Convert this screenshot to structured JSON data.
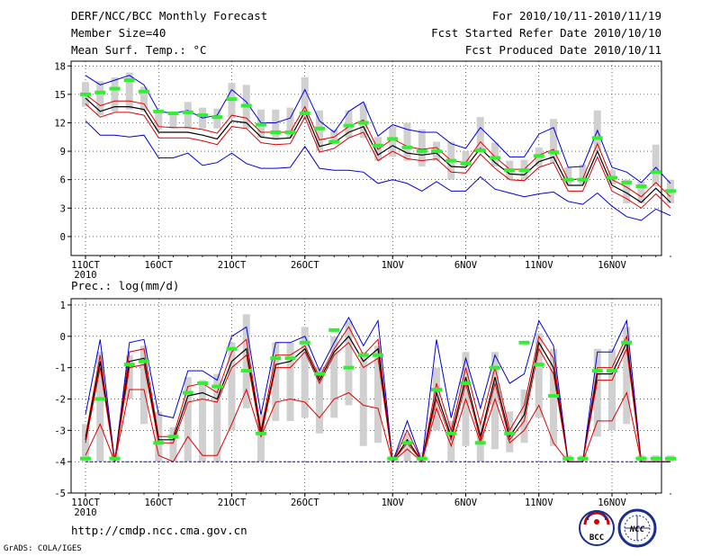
{
  "header": {
    "title": "DERF/NCC/BCC Monthly Forecast",
    "member": "Member Size=40",
    "variable": "Mean Surf. Temp.: °C",
    "period": "For 2010/10/11-2010/11/19",
    "started": "Fcst Started Refer Date 2010/10/10",
    "produced": "Fcst Produced Date 2010/10/11"
  },
  "footer": {
    "url": "http://cmdp.ncc.cma.gov.cn",
    "credit": "GrADS: COLA/IGES",
    "logo1_text": "BCC",
    "logo2_text": "NCC"
  },
  "colors": {
    "envelope": "#0000dd",
    "spread": "#dd0000",
    "mean": "#000000",
    "observed": "#33ee33",
    "box": "#d0d0d0"
  },
  "chart_data": [
    {
      "type": "line",
      "title": "Mean Surf. Temp.: °C",
      "x_labels": [
        "11OCT",
        "16OCT",
        "21OCT",
        "26OCT",
        "1NOV",
        "6NOV",
        "11NOV",
        "16NOV"
      ],
      "x_label_days": [
        0,
        5,
        10,
        15,
        21,
        26,
        31,
        36
      ],
      "year_label": "2010",
      "ylim": [
        -2,
        18.5
      ],
      "yticks": [
        0,
        3,
        6,
        9,
        12,
        15,
        18
      ],
      "series": [
        {
          "name": "max",
          "values": [
            17.0,
            16.0,
            16.5,
            17.0,
            16.0,
            13.2,
            13.0,
            13.3,
            12.5,
            12.8,
            15.5,
            14.2,
            12.0,
            12.0,
            12.5,
            15.5,
            12.2,
            11.0,
            13.2,
            14.2,
            10.6,
            11.8,
            11.3,
            11.0,
            11.0,
            9.8,
            9.3,
            11.5,
            10.0,
            8.4,
            8.4,
            10.8,
            11.5,
            7.3,
            7.4,
            11.2,
            7.3,
            6.8,
            5.7,
            7.3,
            5.6
          ]
        },
        {
          "name": "upper",
          "values": [
            15.0,
            13.8,
            14.3,
            14.3,
            14.0,
            11.6,
            11.5,
            11.5,
            11.3,
            10.9,
            12.8,
            12.5,
            11.0,
            11.0,
            11.0,
            13.7,
            10.2,
            10.5,
            11.6,
            12.3,
            9.2,
            10.3,
            9.5,
            9.2,
            9.4,
            8.0,
            7.8,
            10.0,
            8.4,
            7.1,
            7.1,
            8.6,
            9.2,
            6.0,
            6.1,
            9.8,
            6.0,
            5.2,
            4.2,
            5.7,
            4.2
          ]
        },
        {
          "name": "mean",
          "values": [
            14.6,
            13.2,
            13.7,
            13.7,
            13.4,
            11.0,
            11.0,
            11.0,
            10.7,
            10.3,
            12.2,
            12.0,
            10.5,
            10.3,
            10.4,
            13.2,
            9.5,
            9.9,
            11.0,
            11.6,
            8.6,
            9.6,
            8.8,
            8.6,
            8.8,
            7.4,
            7.3,
            9.3,
            7.8,
            6.6,
            6.5,
            7.9,
            8.4,
            5.4,
            5.4,
            9.0,
            5.4,
            4.6,
            3.6,
            5.1,
            3.6
          ]
        },
        {
          "name": "lower",
          "values": [
            14.0,
            12.6,
            13.1,
            13.1,
            12.8,
            10.4,
            10.4,
            10.4,
            10.1,
            9.7,
            11.6,
            11.4,
            9.9,
            9.7,
            9.8,
            12.6,
            8.9,
            9.3,
            10.4,
            11.0,
            8.0,
            9.0,
            8.2,
            8.0,
            8.2,
            6.8,
            6.7,
            8.7,
            7.2,
            6.0,
            5.9,
            7.3,
            7.8,
            4.8,
            4.8,
            8.4,
            4.8,
            4.0,
            3.0,
            4.5,
            3.0
          ]
        },
        {
          "name": "min",
          "values": [
            12.2,
            10.7,
            10.7,
            10.5,
            10.7,
            8.3,
            8.3,
            8.8,
            7.5,
            7.8,
            8.8,
            7.7,
            7.2,
            7.2,
            7.3,
            9.5,
            7.2,
            7.0,
            7.0,
            6.8,
            5.6,
            6.0,
            5.6,
            4.8,
            5.8,
            4.8,
            4.8,
            6.3,
            5.0,
            4.6,
            4.2,
            4.5,
            4.7,
            3.7,
            3.4,
            4.6,
            3.2,
            2.1,
            1.7,
            2.9,
            2.2
          ]
        }
      ],
      "boxes": [
        [
          13.7,
          16.3
        ],
        [
          12.8,
          16.4
        ],
        [
          13.2,
          16.8
        ],
        [
          13.4,
          17.3
        ],
        [
          13.2,
          15.8
        ],
        [
          11.3,
          13.3
        ],
        [
          11.4,
          12.9
        ],
        [
          11.4,
          14.2
        ],
        [
          11.4,
          13.6
        ],
        [
          11.4,
          13.5
        ],
        [
          12.5,
          16.2
        ],
        [
          11.4,
          16.0
        ],
        [
          10.4,
          13.4
        ],
        [
          10.4,
          13.4
        ],
        [
          10.4,
          13.6
        ],
        [
          12.4,
          16.8
        ],
        [
          9.0,
          13.3
        ],
        [
          9.7,
          11.3
        ],
        [
          10.4,
          13.3
        ],
        [
          10.4,
          14.0
        ],
        [
          8.0,
          10.5
        ],
        [
          8.4,
          11.6
        ],
        [
          8.0,
          12.0
        ],
        [
          7.4,
          11.3
        ],
        [
          8.0,
          10.0
        ],
        [
          6.0,
          10.0
        ],
        [
          7.4,
          9.0
        ],
        [
          9.0,
          12.6
        ],
        [
          7.4,
          9.9
        ],
        [
          6.0,
          8.0
        ],
        [
          6.0,
          8.1
        ],
        [
          7.4,
          9.4
        ],
        [
          7.8,
          12.4
        ],
        [
          5.5,
          7.3
        ],
        [
          5.5,
          7.6
        ],
        [
          9.0,
          13.3
        ],
        [
          5.5,
          7.0
        ],
        [
          3.5,
          6.0
        ],
        [
          3.5,
          5.8
        ],
        [
          5.3,
          9.7
        ],
        [
          3.5,
          6.0
        ]
      ],
      "observed": [
        15.0,
        15.2,
        15.6,
        16.5,
        15.3,
        13.2,
        13.0,
        13.1,
        12.8,
        12.6,
        14.5,
        13.8,
        11.8,
        11.0,
        11.0,
        13.0,
        11.4,
        10.0,
        11.7,
        12.0,
        9.6,
        10.3,
        9.4,
        9.0,
        9.0,
        8.0,
        7.7,
        9.1,
        8.3,
        7.0,
        7.0,
        8.5,
        8.9,
        6.0,
        6.0,
        10.4,
        6.2,
        5.7,
        5.3,
        6.8,
        4.8
      ]
    },
    {
      "type": "line",
      "title": "Prec.: log(mm/d)",
      "x_labels": [
        "11OCT",
        "16OCT",
        "21OCT",
        "26OCT",
        "1NOV",
        "6NOV",
        "11NOV",
        "16NOV"
      ],
      "x_label_days": [
        0,
        5,
        10,
        15,
        21,
        26,
        31,
        36
      ],
      "year_label": "2010",
      "ylim": [
        -5,
        1.2
      ],
      "yticks": [
        -5,
        -4,
        -3,
        -2,
        -1,
        0,
        1
      ],
      "series": [
        {
          "name": "max",
          "values": [
            -2.5,
            -0.1,
            -4.0,
            -0.2,
            -0.1,
            -2.5,
            -2.6,
            -1.1,
            -1.1,
            -1.4,
            0.0,
            0.3,
            -2.5,
            -0.2,
            -0.2,
            0.0,
            -1.1,
            -0.2,
            0.6,
            -0.3,
            0.5,
            -4.0,
            -2.7,
            -4.0,
            -0.1,
            -2.6,
            -0.7,
            -2.3,
            -0.6,
            -1.5,
            -1.2,
            0.5,
            -0.3,
            -4.0,
            -4.0,
            -0.5,
            -0.5,
            0.5,
            -4.0,
            -4.0,
            -4.0
          ]
        },
        {
          "name": "upper",
          "values": [
            -3.2,
            -0.6,
            -4.0,
            -0.5,
            -0.4,
            -3.2,
            -3.2,
            -1.6,
            -1.5,
            -1.8,
            -0.5,
            -0.1,
            -3.0,
            -0.6,
            -0.6,
            -0.3,
            -1.3,
            -0.4,
            0.3,
            -0.6,
            -0.1,
            -4.0,
            -3.0,
            -4.0,
            -1.5,
            -3.0,
            -1.0,
            -2.8,
            -1.0,
            -3.0,
            -2.2,
            0.0,
            -0.7,
            -4.0,
            -4.0,
            -1.0,
            -1.0,
            0.0,
            -4.0,
            -4.0,
            -4.0
          ]
        },
        {
          "name": "mean",
          "values": [
            -3.3,
            -0.8,
            -4.0,
            -0.8,
            -0.7,
            -3.3,
            -3.3,
            -1.9,
            -1.8,
            -2.0,
            -0.8,
            -0.4,
            -3.1,
            -0.9,
            -0.8,
            -0.4,
            -1.4,
            -0.5,
            0.0,
            -0.8,
            -0.4,
            -4.0,
            -3.3,
            -4.0,
            -1.8,
            -3.2,
            -1.3,
            -3.2,
            -1.3,
            -3.2,
            -2.5,
            -0.2,
            -1.0,
            -4.0,
            -4.0,
            -1.2,
            -1.2,
            -0.2,
            -4.0,
            -4.0,
            -4.0
          ]
        },
        {
          "name": "lower",
          "values": [
            -3.4,
            -1.0,
            -4.0,
            -1.0,
            -0.9,
            -3.4,
            -3.4,
            -2.1,
            -2.0,
            -2.1,
            -1.0,
            -0.6,
            -3.2,
            -1.0,
            -1.0,
            -0.5,
            -1.5,
            -0.6,
            -0.2,
            -1.0,
            -0.7,
            -4.0,
            -3.4,
            -4.0,
            -2.0,
            -3.3,
            -1.5,
            -3.3,
            -1.5,
            -3.3,
            -2.7,
            -0.4,
            -1.2,
            -4.0,
            -4.0,
            -1.4,
            -1.4,
            -0.4,
            -4.0,
            -4.0,
            -4.0
          ]
        },
        {
          "name": "lower2",
          "values": [
            -3.8,
            -2.8,
            -4.0,
            -1.7,
            -1.7,
            -3.8,
            -4.0,
            -3.2,
            -3.8,
            -3.8,
            -2.8,
            -1.7,
            -3.2,
            -2.1,
            -2.0,
            -2.1,
            -2.6,
            -2.0,
            -1.8,
            -2.2,
            -2.3,
            -4.0,
            -3.6,
            -4.0,
            -2.3,
            -3.5,
            -2.0,
            -3.4,
            -2.0,
            -3.4,
            -3.0,
            -2.2,
            -3.4,
            -4.0,
            -4.0,
            -2.7,
            -2.7,
            -1.8,
            -4.0,
            -4.0,
            -4.0
          ]
        },
        {
          "name": "min",
          "values": [
            -4.0,
            -4.0,
            -4.0,
            -4.0,
            -4.0,
            -4.0,
            -4.0,
            -4.0,
            -4.0,
            -4.0,
            -4.0,
            -4.0,
            -4.0,
            -4.0,
            -4.0,
            -4.0,
            -4.0,
            -4.0,
            -4.0,
            -4.0,
            -4.0,
            -4.0,
            -4.0,
            -4.0,
            -4.0,
            -4.0,
            -4.0,
            -4.0,
            -4.0,
            -4.0,
            -4.0,
            -4.0,
            -4.0,
            -4.0,
            -4.0,
            -4.0,
            -4.0,
            -4.0,
            -4.0,
            -4.0,
            -4.0
          ]
        }
      ],
      "boxes": [
        [
          -4.0,
          -2.8
        ],
        [
          -4.0,
          -0.5
        ],
        [
          -4.0,
          -3.7
        ],
        [
          -2.0,
          -0.6
        ],
        [
          -2.8,
          -0.3
        ],
        [
          -4.0,
          -2.4
        ],
        [
          -4.0,
          -2.9
        ],
        [
          -4.0,
          -1.3
        ],
        [
          -4.0,
          -1.4
        ],
        [
          -4.0,
          -1.2
        ],
        [
          -3.0,
          -0.2
        ],
        [
          -2.3,
          0.7
        ],
        [
          -4.0,
          -2.5
        ],
        [
          -2.7,
          -0.2
        ],
        [
          -2.7,
          -0.2
        ],
        [
          -2.6,
          0.3
        ],
        [
          -3.1,
          -1.0
        ],
        [
          -2.6,
          0.0
        ],
        [
          -2.2,
          0.5
        ],
        [
          -3.5,
          -0.5
        ],
        [
          -3.4,
          -0.3
        ],
        [
          -4.0,
          -3.8
        ],
        [
          -4.0,
          -3.1
        ],
        [
          -4.0,
          -3.7
        ],
        [
          -3.0,
          -1.0
        ],
        [
          -4.0,
          -2.7
        ],
        [
          -3.5,
          -0.5
        ],
        [
          -4.0,
          -2.8
        ],
        [
          -3.6,
          -0.5
        ],
        [
          -3.7,
          -2.4
        ],
        [
          -3.4,
          -1.7
        ],
        [
          -2.6,
          0.1
        ],
        [
          -3.5,
          -0.4
        ],
        [
          -4.0,
          -3.8
        ],
        [
          -4.0,
          -3.8
        ],
        [
          -3.2,
          -0.4
        ],
        [
          -3.0,
          -0.4
        ],
        [
          -2.8,
          0.3
        ],
        [
          -4.0,
          -3.8
        ],
        [
          -4.0,
          -3.8
        ],
        [
          -4.0,
          -3.8
        ]
      ],
      "observed": [
        -3.9,
        -2.0,
        -3.9,
        -0.9,
        -0.8,
        -3.4,
        -3.2,
        -1.8,
        -1.5,
        -1.6,
        -0.4,
        -1.1,
        -3.1,
        -0.7,
        -0.7,
        -0.2,
        -1.2,
        0.2,
        -1.0,
        -0.6,
        -0.6,
        -3.9,
        -3.4,
        -3.9,
        -1.7,
        -3.1,
        -1.5,
        -3.4,
        -1.0,
        -3.1,
        -0.2,
        -0.9,
        -1.9,
        -3.9,
        -3.9,
        -1.1,
        -1.1,
        -0.2,
        -3.9,
        -3.9,
        -3.9
      ]
    }
  ]
}
